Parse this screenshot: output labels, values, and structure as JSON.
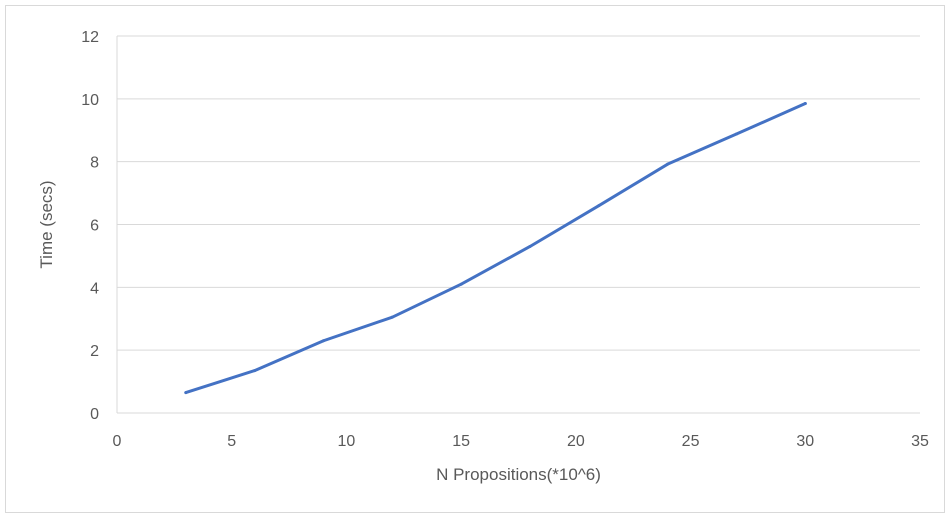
{
  "chart_data": {
    "type": "line",
    "title": "",
    "xlabel": "N Propositions(*10^6)",
    "ylabel": "Time (secs)",
    "xlim": [
      0,
      35
    ],
    "ylim": [
      0,
      12
    ],
    "x_ticks": [
      0,
      5,
      10,
      15,
      20,
      25,
      30,
      35
    ],
    "y_ticks": [
      0,
      2,
      4,
      6,
      8,
      10,
      12
    ],
    "grid": {
      "horizontal": true,
      "vertical": false
    },
    "legend": "none",
    "series": [
      {
        "color": "#4472c4",
        "points": [
          {
            "x": 3,
            "y": 0.65
          },
          {
            "x": 6,
            "y": 1.35
          },
          {
            "x": 9,
            "y": 2.3
          },
          {
            "x": 12,
            "y": 3.05
          },
          {
            "x": 15,
            "y": 4.1
          },
          {
            "x": 18,
            "y": 5.3
          },
          {
            "x": 21,
            "y": 6.6
          },
          {
            "x": 24,
            "y": 7.92
          },
          {
            "x": 27,
            "y": 8.88
          },
          {
            "x": 30,
            "y": 9.85
          }
        ]
      }
    ]
  }
}
